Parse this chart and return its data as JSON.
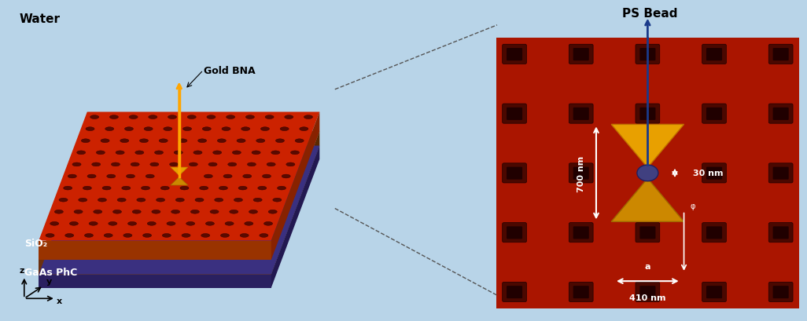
{
  "bg_color_left": "#b8d4e8",
  "slab_top_color": "#cc2200",
  "slab_side_color": "#993300",
  "gaas_color": "#3a3080",
  "hole_color": "#5a0a00",
  "bead_color": "#404080",
  "arrow_color_gold": "#ffa500",
  "arrow_color_blue": "#1a3a8a",
  "text_water": "Water",
  "text_sio2": "SiO₂",
  "text_gaas": "GaAs PhC",
  "text_gold_bna": "Gold BNA",
  "text_ps_bead": "PS Bead",
  "text_700nm": "700 nm",
  "text_30nm": "30 nm",
  "text_410nm": "410 nm",
  "text_a": "a",
  "right_panel_bg": "#aa1500",
  "connector_color": "#555555"
}
